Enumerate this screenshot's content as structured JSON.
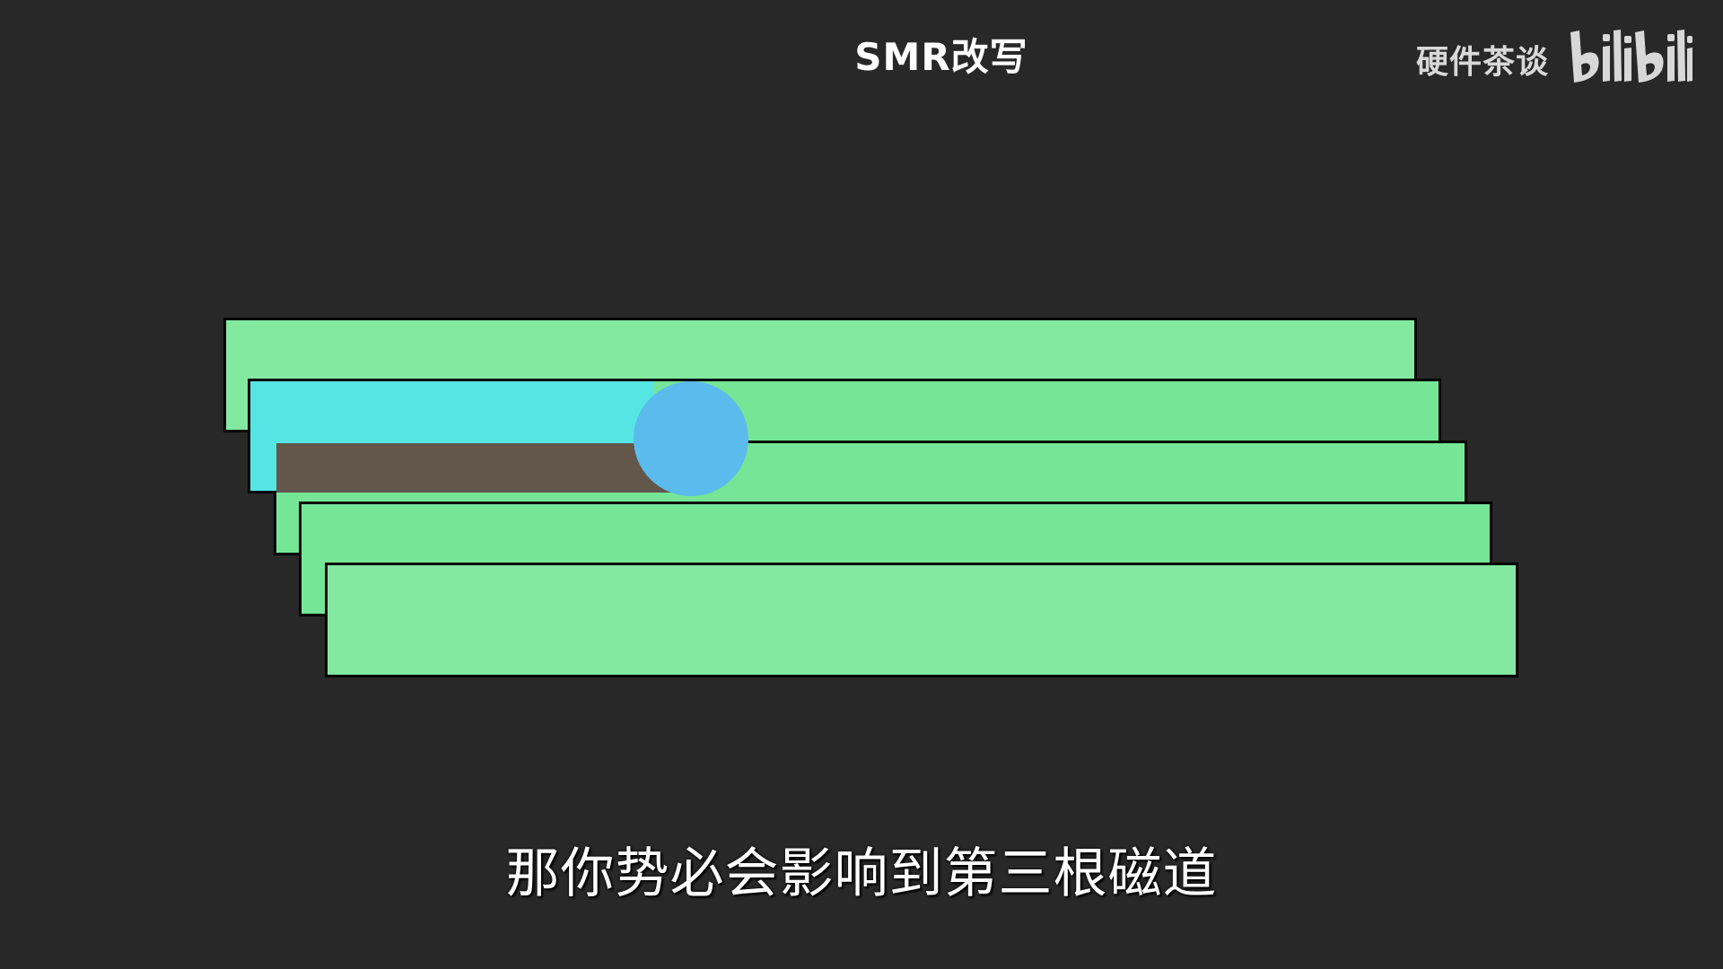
{
  "header": {
    "title": "SMR改写"
  },
  "watermark": {
    "channel": "硬件茶谈",
    "logo": "bilibili-logo"
  },
  "diagram": {
    "tracks": [
      "track-1",
      "track-2",
      "track-3",
      "track-4",
      "track-5"
    ],
    "colors": {
      "track": "#84e9a0",
      "track_overlap": "#75e695",
      "written_cyan": "#55e6e4",
      "written_brown": "#63564a",
      "head": "#5bbbec",
      "background": "#282828"
    }
  },
  "subtitle": {
    "text": "那你势必会影响到第三根磁道"
  }
}
